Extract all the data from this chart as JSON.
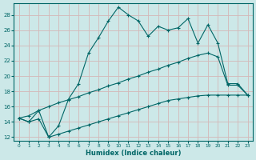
{
  "xlabel": "Humidex (Indice chaleur)",
  "background_color": "#cce8e8",
  "grid_color": "#c8dada",
  "line_color": "#006666",
  "x_ticks": [
    0,
    1,
    2,
    3,
    4,
    5,
    6,
    7,
    8,
    9,
    10,
    11,
    12,
    13,
    14,
    15,
    16,
    17,
    18,
    19,
    20,
    21,
    22,
    23
  ],
  "y_ticks": [
    12,
    14,
    16,
    18,
    20,
    22,
    24,
    26,
    28
  ],
  "ylim": [
    11.5,
    29.5
  ],
  "xlim": [
    -0.5,
    23.5
  ],
  "line1_x": [
    0,
    1,
    2,
    3,
    4,
    5,
    6,
    7,
    8,
    9,
    10,
    11,
    12,
    13,
    14,
    15,
    16,
    17,
    18,
    19,
    20,
    21,
    22,
    23
  ],
  "line1_y": [
    14.5,
    14.0,
    15.5,
    12.0,
    13.5,
    17.0,
    19.0,
    23.0,
    25.0,
    27.2,
    29.0,
    28.0,
    27.2,
    25.2,
    26.5,
    26.0,
    26.3,
    27.5,
    24.3,
    26.7,
    24.3,
    19.0,
    19.0,
    17.5
  ],
  "line2_x": [
    0,
    1,
    2,
    3,
    4,
    5,
    6,
    7,
    8,
    9,
    10,
    11,
    12,
    13,
    14,
    15,
    16,
    17,
    18,
    19,
    20,
    21,
    22,
    23
  ],
  "line2_y": [
    14.5,
    14.8,
    15.5,
    16.0,
    16.5,
    16.9,
    17.3,
    17.8,
    18.2,
    18.7,
    19.1,
    19.6,
    20.0,
    20.5,
    20.9,
    21.4,
    21.8,
    22.3,
    22.7,
    23.0,
    22.5,
    18.8,
    18.8,
    17.5
  ],
  "line3_x": [
    0,
    1,
    2,
    3,
    4,
    5,
    6,
    7,
    8,
    9,
    10,
    11,
    12,
    13,
    14,
    15,
    16,
    17,
    18,
    19,
    20,
    21,
    22,
    23
  ],
  "line3_y": [
    14.5,
    14.0,
    14.4,
    12.0,
    12.4,
    12.8,
    13.2,
    13.6,
    14.0,
    14.4,
    14.8,
    15.2,
    15.6,
    16.0,
    16.4,
    16.8,
    17.0,
    17.2,
    17.4,
    17.5,
    17.5,
    17.5,
    17.5,
    17.5
  ]
}
